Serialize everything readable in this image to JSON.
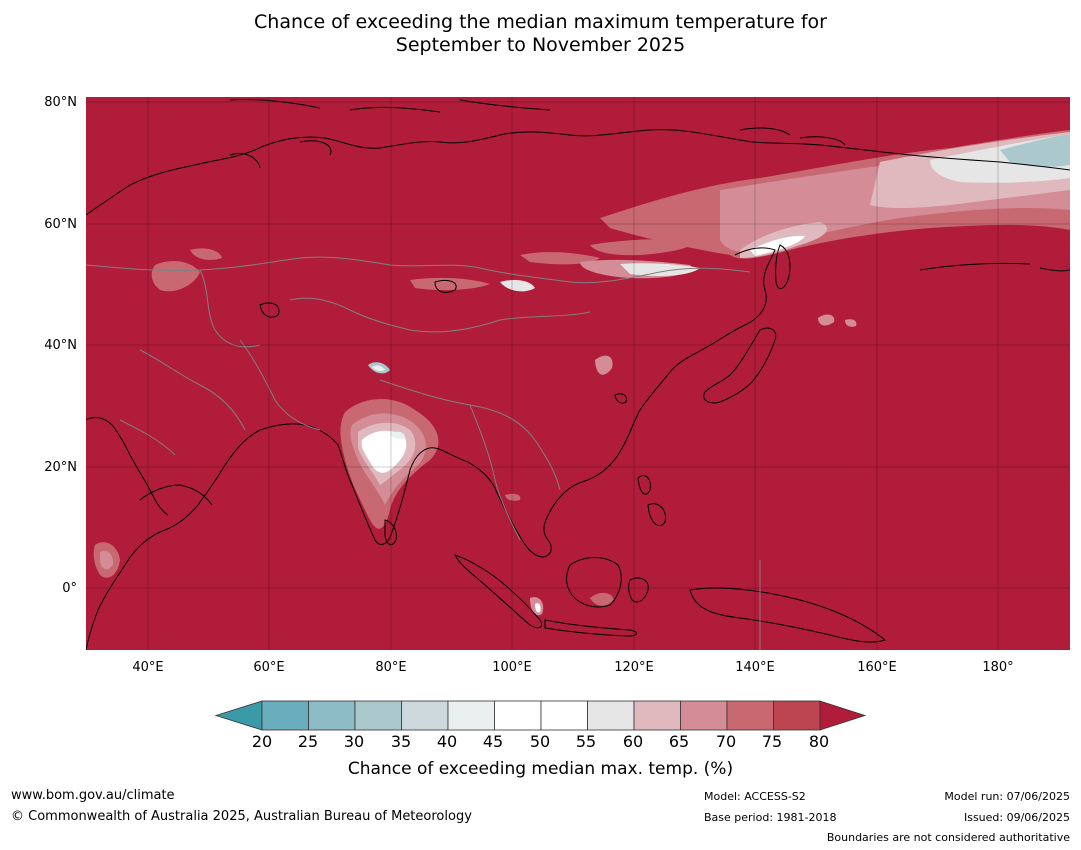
{
  "title": {
    "line1": "Chance of exceeding the median maximum temperature for",
    "line2": "September to November 2025"
  },
  "map": {
    "region": "Asia",
    "lat_labels": [
      "80°N",
      "60°N",
      "40°N",
      "20°N",
      "0°"
    ],
    "lon_labels": [
      "40°E",
      "60°E",
      "80°E",
      "100°E",
      "120°E",
      "140°E",
      "160°E",
      "180°"
    ],
    "ocean_and_land_fill_color": "#b01c3a",
    "coastline_color": "#000000",
    "border_color": "#808080"
  },
  "colorbar": {
    "ticks": [
      "20",
      "25",
      "30",
      "35",
      "40",
      "45",
      "50",
      "55",
      "60",
      "65",
      "70",
      "75",
      "80"
    ],
    "colors": [
      "#3b9aa8",
      "#6aaebd",
      "#8dbbc6",
      "#abc8cd",
      "#ccd8db",
      "#eaf0f0",
      "#ffffff",
      "#ffffff",
      "#e6e6e6",
      "#e0b9be",
      "#d48c96",
      "#c86870",
      "#bd4552",
      "#b01c3a"
    ],
    "label": "Chance of exceeding median max. temp. (%)"
  },
  "footer": {
    "website": "www.bom.gov.au/climate",
    "copyright": "© Commonwealth of Australia 2025, Australian Bureau of Meteorology",
    "model": "Model: ACCESS-S2",
    "base_period": "Base period: 1981-2018",
    "model_run": "Model run: 07/06/2025",
    "issued": "Issued: 09/06/2025",
    "disclaimer": "Boundaries are not considered authoritative"
  }
}
